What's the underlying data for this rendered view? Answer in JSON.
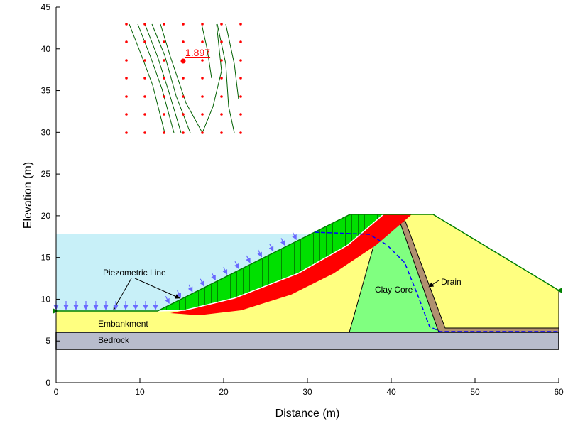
{
  "axes": {
    "xlabel": "Distance (m)",
    "ylabel": "Elevation (m)",
    "xlim": [
      0,
      60
    ],
    "ylim": [
      0,
      45
    ],
    "xticks": [
      0,
      10,
      20,
      30,
      40,
      50,
      60
    ],
    "yticks": [
      0,
      5,
      10,
      15,
      20,
      25,
      30,
      35,
      40,
      45
    ]
  },
  "labels": {
    "piezometric": "Piezometric Line",
    "embankment": "Embankment",
    "bedrock": "Bedrock",
    "core": "Clay Core",
    "drain": "Drain"
  },
  "critical_fos": "1.897"
}
